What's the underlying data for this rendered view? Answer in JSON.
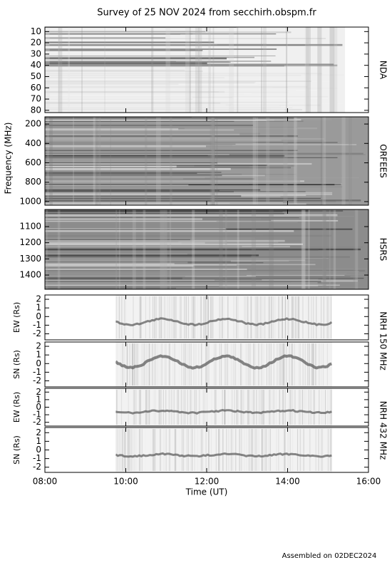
{
  "title": "Survey of 25 NOV 2024 from secchirh.obspm.fr",
  "frequency_label": "Frequency (MHz)",
  "footer": "Assembled on 02DEC2024",
  "chart_data": [
    {
      "type": "spectrogram",
      "side_label": "NDA",
      "color": "#f0f0f0",
      "coverage": [
        8,
        15.42
      ],
      "xlim": [
        8,
        16
      ],
      "xticks": [
        8,
        10,
        12,
        14,
        16
      ],
      "ylim": [
        82,
        6
      ],
      "yticks": [
        10,
        20,
        30,
        40,
        50,
        60,
        70,
        80
      ]
    },
    {
      "type": "spectrogram",
      "side_label": "ORFEES",
      "color": "#9a9a9a",
      "coverage": [
        8,
        16
      ],
      "xlim": [
        8,
        16
      ],
      "xticks": [
        8,
        10,
        12,
        14,
        16
      ],
      "ylim": [
        1037,
        126
      ],
      "yticks": [
        200,
        400,
        600,
        800,
        1000
      ]
    },
    {
      "type": "spectrogram",
      "side_label": "HSRS",
      "color": "#8c8c8c",
      "coverage": [
        8,
        16
      ],
      "xlim": [
        8,
        16
      ],
      "xticks": [
        8,
        10,
        12,
        14,
        16
      ],
      "ylim": [
        1488,
        994
      ],
      "yticks": [
        1100,
        1200,
        1300,
        1400
      ]
    },
    {
      "type": "position",
      "side_label": "NRH 150 MHz",
      "ylabel": "EW (Rs)",
      "color": "#f2f2f2",
      "coverage": [
        9.75,
        15.1
      ],
      "xlim": [
        8,
        16
      ],
      "xticks": [
        8,
        10,
        12,
        14,
        16
      ],
      "ylim": [
        -2.7,
        2.5
      ],
      "yticks": [
        -2,
        -1,
        0,
        1,
        2
      ]
    },
    {
      "type": "position",
      "ylabel": "SN (Rs)",
      "color": "#f2f2f2",
      "coverage": [
        9.75,
        15.1
      ],
      "xlim": [
        8,
        16
      ],
      "xticks": [
        8,
        10,
        12,
        14,
        16
      ],
      "ylim": [
        -2.7,
        2.5
      ],
      "yticks": [
        -2,
        -1,
        0,
        1,
        2
      ]
    },
    {
      "type": "position",
      "side_label": "NRH 432 MHz",
      "ylabel": "EW (Rs)",
      "color": "#f2f2f2",
      "coverage": [
        9.75,
        15.1
      ],
      "xlim": [
        8,
        16
      ],
      "xticks": [
        8,
        10,
        12,
        14,
        16
      ],
      "ylim": [
        -2.5,
        2.5
      ],
      "yticks": [
        -2,
        -1,
        0,
        1,
        2
      ]
    },
    {
      "type": "position",
      "ylabel": "SN (Rs)",
      "color": "#f2f2f2",
      "coverage": [
        9.75,
        15.1
      ],
      "xlim": [
        8,
        16
      ],
      "xticks": [
        {
          "value": 8,
          "label": "08:00"
        },
        {
          "value": 10,
          "label": "10:00"
        },
        {
          "value": 12,
          "label": "12:00"
        },
        {
          "value": 14,
          "label": "14:00"
        },
        {
          "value": 16,
          "label": "16:00"
        }
      ],
      "xlabel": "Time (UT)",
      "ylim": [
        -2.6,
        2.6
      ],
      "yticks": [
        -2,
        -1,
        0,
        1,
        2
      ]
    }
  ]
}
